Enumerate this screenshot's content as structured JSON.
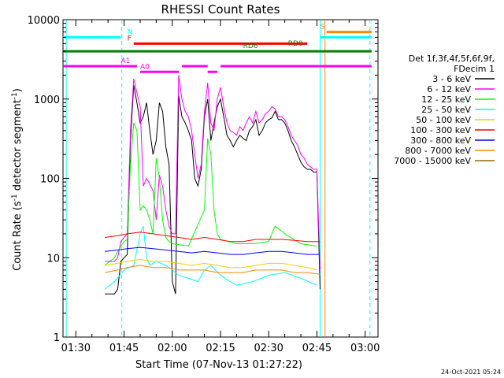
{
  "chart_data": {
    "type": "line",
    "title": "RHESSI Count Rates",
    "xlabel": "Start Time (07-Nov-13 01:27:22)",
    "ylabel_prefix": "Count Rate (s",
    "ylabel_sup1": "-1",
    "ylabel_mid": " detector segment",
    "ylabel_sup2": "-1",
    "ylabel_suffix": ")",
    "y_scale": "log",
    "ylim": [
      1,
      10000
    ],
    "xlim_minutes": [
      86,
      184
    ],
    "x_ticks": [
      {
        "minute": 90,
        "label": "01:30"
      },
      {
        "minute": 105,
        "label": "01:45"
      },
      {
        "minute": 120,
        "label": "02:00"
      },
      {
        "minute": 135,
        "label": "02:15"
      },
      {
        "minute": 150,
        "label": "02:30"
      },
      {
        "minute": 165,
        "label": "02:45"
      },
      {
        "minute": 180,
        "label": "03:00"
      }
    ],
    "y_ticks": [
      {
        "value": 1,
        "label": "1"
      },
      {
        "value": 10,
        "label": "10"
      },
      {
        "value": 100,
        "label": "100"
      },
      {
        "value": 1000,
        "label": "1000"
      },
      {
        "value": 10000,
        "label": "10000"
      }
    ],
    "legend": {
      "placement": "right",
      "header": [
        "Det 1f,3f,4f,5f,6f,9f,",
        "FDecim 1"
      ],
      "entries": [
        {
          "label": "3 - 6 keV",
          "color": "#000000"
        },
        {
          "label": "6 - 12 keV",
          "color": "#ff00ff"
        },
        {
          "label": "12 - 25 keV",
          "color": "#00ff00"
        },
        {
          "label": "25 - 50 keV",
          "color": "#00ffff"
        },
        {
          "label": "50 - 100 keV",
          "color": "#ffcc00"
        },
        {
          "label": "100 - 300 keV",
          "color": "#ff0000"
        },
        {
          "label": "300 - 800 keV",
          "color": "#0000ff"
        },
        {
          "label": "800 - 7000 keV",
          "color": "#ff8800"
        },
        {
          "label": "7000 - 15000 keV",
          "color": "#996600"
        }
      ]
    },
    "series": [
      {
        "name": "3 - 6 keV",
        "color": "#000000",
        "x": [
          99,
          102,
          103,
          104,
          105,
          106,
          107,
          108,
          109,
          110,
          111,
          112,
          113,
          114,
          115,
          116,
          117,
          118,
          119,
          120,
          121,
          122,
          123,
          124,
          125,
          126,
          127,
          128,
          129,
          130,
          131,
          132,
          133,
          134,
          135,
          136,
          137,
          138,
          139,
          140,
          141,
          142,
          143,
          144,
          145,
          146,
          147,
          148,
          149,
          150,
          151,
          152,
          153,
          154,
          155,
          156,
          157,
          158,
          159,
          160,
          161,
          162,
          163,
          164,
          165,
          166
        ],
        "y": [
          3.5,
          3.5,
          4,
          9,
          10,
          11,
          300,
          1500,
          900,
          500,
          600,
          900,
          400,
          200,
          300,
          900,
          700,
          250,
          150,
          5,
          3.5,
          1100,
          600,
          500,
          400,
          300,
          100,
          80,
          130,
          600,
          1000,
          300,
          500,
          800,
          1000,
          600,
          350,
          300,
          250,
          300,
          350,
          320,
          300,
          400,
          450,
          550,
          350,
          400,
          500,
          550,
          580,
          700,
          550,
          550,
          500,
          400,
          300,
          250,
          200,
          160,
          140,
          130,
          130,
          120,
          120,
          4
        ]
      },
      {
        "name": "6 - 12 keV",
        "color": "#ff00ff",
        "x": [
          99,
          102,
          103,
          104,
          105,
          106,
          107,
          108,
          109,
          110,
          111,
          112,
          113,
          114,
          115,
          116,
          117,
          118,
          119,
          120,
          121,
          122,
          123,
          124,
          125,
          126,
          127,
          128,
          129,
          130,
          131,
          132,
          133,
          134,
          135,
          136,
          137,
          138,
          139,
          140,
          141,
          142,
          143,
          144,
          145,
          146,
          147,
          148,
          149,
          150,
          151,
          152,
          153,
          154,
          155,
          156,
          157,
          158,
          159,
          160,
          161,
          162,
          163,
          164,
          165,
          166
        ],
        "y": [
          9,
          9,
          10,
          16,
          18,
          20,
          400,
          1800,
          1200,
          800,
          80,
          100,
          85,
          70,
          30,
          110,
          80,
          40,
          25,
          20,
          20,
          2000,
          1000,
          700,
          600,
          400,
          200,
          100,
          150,
          700,
          1600,
          500,
          400,
          1000,
          1400,
          800,
          500,
          400,
          380,
          350,
          450,
          400,
          500,
          600,
          500,
          700,
          500,
          550,
          650,
          700,
          800,
          750,
          600,
          600,
          550,
          450,
          350,
          300,
          260,
          200,
          180,
          150,
          140,
          130,
          130,
          7
        ]
      },
      {
        "name": "12 - 25 keV",
        "color": "#00ff00",
        "x": [
          99,
          102,
          104,
          105,
          106,
          107,
          108,
          109,
          110,
          111,
          112,
          113,
          114,
          115,
          116,
          117,
          118,
          119,
          120,
          125,
          130,
          131,
          132,
          133,
          134,
          135,
          140,
          145,
          150,
          152,
          155,
          160,
          165
        ],
        "y": [
          8,
          10,
          14,
          16,
          17,
          150,
          500,
          400,
          40,
          45,
          40,
          30,
          20,
          180,
          100,
          30,
          18,
          16,
          15,
          14,
          40,
          320,
          200,
          40,
          20,
          17,
          15,
          15,
          16,
          25,
          20,
          15,
          14
        ]
      },
      {
        "name": "25 - 50 keV",
        "color": "#00ffff",
        "x": [
          99,
          102,
          105,
          108,
          110,
          111,
          112,
          113,
          115,
          118,
          120,
          122,
          125,
          128,
          130,
          132,
          135,
          138,
          140,
          145,
          150,
          155,
          160,
          165
        ],
        "y": [
          4,
          5,
          7,
          8,
          20,
          25,
          10,
          8,
          9,
          8,
          7,
          6,
          5.5,
          5,
          7,
          8,
          6,
          5,
          4.5,
          5,
          6,
          6.5,
          5.5,
          4.5
        ]
      },
      {
        "name": "50 - 100 keV",
        "color": "#ffcc00",
        "x": [
          99,
          103,
          106,
          110,
          114,
          118,
          122,
          126,
          130,
          134,
          138,
          142,
          146,
          150,
          154,
          158,
          162,
          165
        ],
        "y": [
          8,
          8.5,
          9,
          9.5,
          9,
          9,
          8.5,
          8,
          8.5,
          8,
          7.5,
          7.5,
          8,
          8.5,
          8.5,
          8,
          7.5,
          7
        ]
      },
      {
        "name": "100 - 300 keV",
        "color": "#ff0000",
        "x": [
          99,
          103,
          106,
          110,
          114,
          118,
          122,
          126,
          130,
          134,
          138,
          142,
          146,
          150,
          154,
          158,
          162,
          166
        ],
        "y": [
          18,
          19,
          20,
          21,
          20,
          19,
          18,
          17,
          18,
          17,
          16,
          16,
          17,
          17,
          17,
          16.5,
          16,
          16
        ]
      },
      {
        "name": "300 - 800 keV",
        "color": "#0000ff",
        "x": [
          99,
          103,
          106,
          110,
          114,
          118,
          122,
          126,
          130,
          134,
          138,
          142,
          146,
          150,
          154,
          158,
          162,
          166
        ],
        "y": [
          12,
          12.5,
          13,
          13.5,
          13,
          12.5,
          12,
          11.5,
          12,
          11.5,
          11,
          11,
          11.5,
          12,
          12,
          11.5,
          11,
          11
        ]
      },
      {
        "name": "800 - 7000 keV",
        "color": "#ff8800",
        "x": [
          99,
          103,
          106,
          110,
          114,
          118,
          122,
          126,
          130,
          134,
          138,
          142,
          146,
          150,
          154,
          158,
          162,
          166
        ],
        "y": [
          6.5,
          7,
          7.5,
          8,
          7.5,
          7.5,
          7,
          7,
          7,
          6.5,
          6.5,
          6.5,
          7,
          7,
          7,
          6.5,
          6.5,
          6.2
        ]
      }
    ],
    "attenuator_lines": [
      {
        "label": "N",
        "color": "#00ffff",
        "y": 6000,
        "segments": [
          [
            86,
            104
          ],
          [
            166,
            182
          ]
        ],
        "label_x": 106
      },
      {
        "label": "F",
        "color": "#ff0000",
        "y": 5000,
        "segments": [
          [
            108,
            162
          ]
        ],
        "label_x": 106
      },
      {
        "label": "S",
        "color": "#ff8800",
        "y": 7000,
        "segments": [
          [
            168,
            182
          ]
        ],
        "label_x": 166
      },
      {
        "label": "RD6",
        "color": "#008000",
        "y": 4000,
        "segments": [
          [
            86,
            182
          ]
        ],
        "label_x": 142
      },
      {
        "label": "RD0",
        "color": "#008000",
        "y": 4300,
        "segments": [],
        "label_x": 156
      },
      {
        "label": "A1",
        "color": "#ff00ff",
        "y": 2600,
        "segments": [
          [
            86,
            109
          ]
        ],
        "label_x": 104
      },
      {
        "label": "A0",
        "color": "#ff00ff",
        "y": 2200,
        "segments": [
          [
            110,
            122
          ],
          [
            131,
            134
          ]
        ],
        "label_x": 110
      },
      {
        "label": "",
        "color": "#ff00ff",
        "y": 2600,
        "segments": [
          [
            123,
            131
          ],
          [
            135,
            182
          ]
        ],
        "label_x": 0
      }
    ],
    "vertical_lines": [
      {
        "minute": 87,
        "color": "#00ffff",
        "style": "solid"
      },
      {
        "minute": 104.3,
        "color": "#00ffff",
        "style": "dashed"
      },
      {
        "minute": 166,
        "color": "#00ffff",
        "style": "solid"
      },
      {
        "minute": 167.5,
        "color": "#ff8800",
        "style": "solid"
      },
      {
        "minute": 181.5,
        "color": "#00ffff",
        "style": "dashed"
      }
    ],
    "grid": false
  },
  "footer": {
    "timestamp": "24-Oct-2021 05:24"
  }
}
